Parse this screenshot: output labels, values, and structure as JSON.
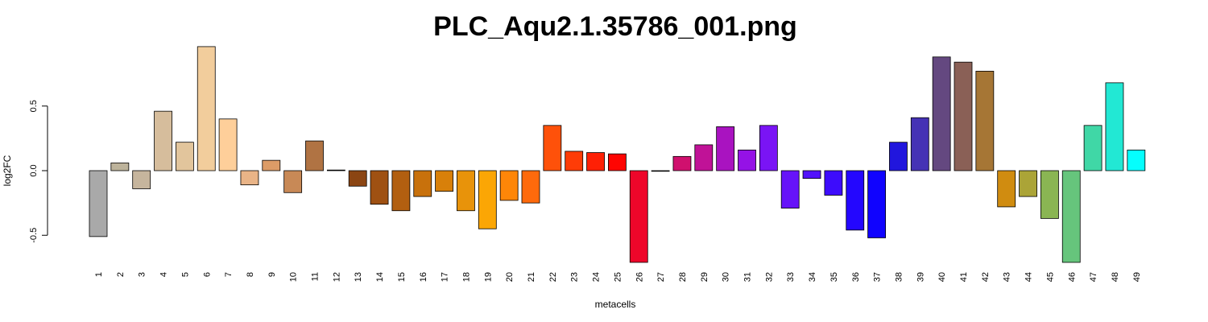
{
  "chart_data": {
    "type": "bar",
    "title": "PLC_Aqu2.1.35786_001.png",
    "xlabel": "metacells",
    "ylabel": "log2FC",
    "ylim": [
      -0.75,
      1.0
    ],
    "yticks": [
      -0.5,
      0.0,
      0.5
    ],
    "ytick_labels": [
      "-0.5",
      "0.0",
      "0.5"
    ],
    "grid": false,
    "categories": [
      "1",
      "2",
      "3",
      "4",
      "5",
      "6",
      "7",
      "8",
      "9",
      "10",
      "11",
      "12",
      "13",
      "14",
      "15",
      "16",
      "17",
      "18",
      "19",
      "20",
      "21",
      "22",
      "23",
      "24",
      "25",
      "26",
      "27",
      "28",
      "29",
      "30",
      "31",
      "32",
      "33",
      "34",
      "35",
      "36",
      "37",
      "38",
      "39",
      "40",
      "41",
      "42",
      "43",
      "44",
      "45",
      "46",
      "47",
      "48",
      "49"
    ],
    "values": [
      -0.51,
      0.06,
      -0.14,
      0.46,
      0.22,
      0.96,
      0.4,
      -0.11,
      0.08,
      -0.17,
      0.23,
      0.005,
      -0.12,
      -0.26,
      -0.31,
      -0.2,
      -0.16,
      -0.31,
      -0.45,
      -0.23,
      -0.25,
      0.35,
      0.15,
      0.14,
      0.13,
      -0.71,
      -0.005,
      0.11,
      0.2,
      0.34,
      0.16,
      0.35,
      -0.29,
      -0.06,
      -0.19,
      -0.46,
      -0.52,
      0.22,
      0.41,
      0.88,
      0.84,
      0.77,
      -0.28,
      -0.2,
      -0.37,
      -0.71,
      0.35,
      0.68,
      0.16
    ],
    "colors": [
      "#a9a9a9",
      "#bdb39b",
      "#c6b59d",
      "#d6bd9c",
      "#e2c59c",
      "#f2cd9c",
      "#fecf9a",
      "#e9b487",
      "#dc9c67",
      "#c88956",
      "#b07343",
      "#995c33",
      "#8b4513",
      "#9f5112",
      "#b25f10",
      "#c8710c",
      "#d8800a",
      "#e8930a",
      "#fba605",
      "#fe8608",
      "#fe6a0c",
      "#fe510a",
      "#fe3c07",
      "#fe2005",
      "#fe0502",
      "#ee062a",
      "#dd0a45",
      "#d0106e",
      "#c01297",
      "#a913c0",
      "#9512e6",
      "#7a14f5",
      "#6613f9",
      "#5212fb",
      "#3d0cfc",
      "#2407fe",
      "#1003fe",
      "#2116dd",
      "#4532b5",
      "#644880",
      "#8a6056",
      "#a67635",
      "#d08c10",
      "#aba437",
      "#8ab553",
      "#66c57c",
      "#40d7a6",
      "#22e8d4",
      "#05fefd"
    ]
  }
}
